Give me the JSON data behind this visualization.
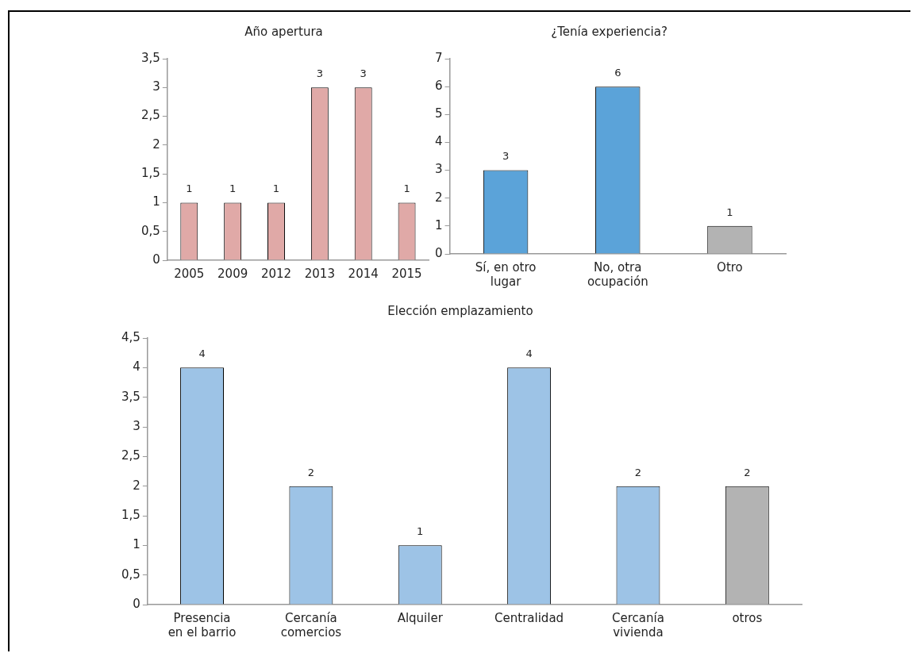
{
  "chart_data": [
    {
      "type": "bar",
      "title": "Año apertura",
      "categories": [
        "2005",
        "2009",
        "2012",
        "2013",
        "2014",
        "2015"
      ],
      "values": [
        1,
        1,
        1,
        3,
        3,
        1
      ],
      "color": "#e0a9a7",
      "ylim": [
        0,
        3.5
      ],
      "yticks": [
        0,
        {
          "value": 0.5,
          "label": "0,5"
        },
        1,
        {
          "value": 1.5,
          "label": "1,5"
        },
        2,
        {
          "value": 2.5,
          "label": "2,5"
        },
        3,
        {
          "value": 3.5,
          "label": "3,5"
        }
      ],
      "grid": false,
      "legend": false,
      "data_labels": true
    },
    {
      "type": "bar",
      "title": "¿Tenía experiencia?",
      "categories": [
        "Sí, en otro lugar",
        "No, otra ocupación",
        "Otro"
      ],
      "values": [
        3,
        6,
        1
      ],
      "colors": [
        "#5ba3d9",
        "#5ba3d9",
        "#b3b3b3"
      ],
      "ylim": [
        0,
        7
      ],
      "yticks": [
        0,
        1,
        2,
        3,
        4,
        5,
        6,
        7
      ],
      "grid": false,
      "legend": false,
      "data_labels": true
    },
    {
      "type": "bar",
      "title": "Elección emplazamiento",
      "categories": [
        "Presencia en el barrio",
        "Cercanía comercios",
        "Alquiler",
        "Centralidad",
        "Cercanía vivienda",
        "otros"
      ],
      "values": [
        4,
        2,
        1,
        4,
        2,
        2
      ],
      "colors": [
        "#9dc3e6",
        "#9dc3e6",
        "#9dc3e6",
        "#9dc3e6",
        "#9dc3e6",
        "#b3b3b3"
      ],
      "ylim": [
        0,
        4.5
      ],
      "yticks": [
        0,
        {
          "value": 0.5,
          "label": "0,5"
        },
        1,
        {
          "value": 1.5,
          "label": "1,5"
        },
        2,
        {
          "value": 2.5,
          "label": "2,5"
        },
        3,
        {
          "value": 3.5,
          "label": "3,5"
        },
        4,
        {
          "value": 4.5,
          "label": "4,5"
        }
      ],
      "grid": false,
      "legend": false,
      "data_labels": true
    }
  ]
}
